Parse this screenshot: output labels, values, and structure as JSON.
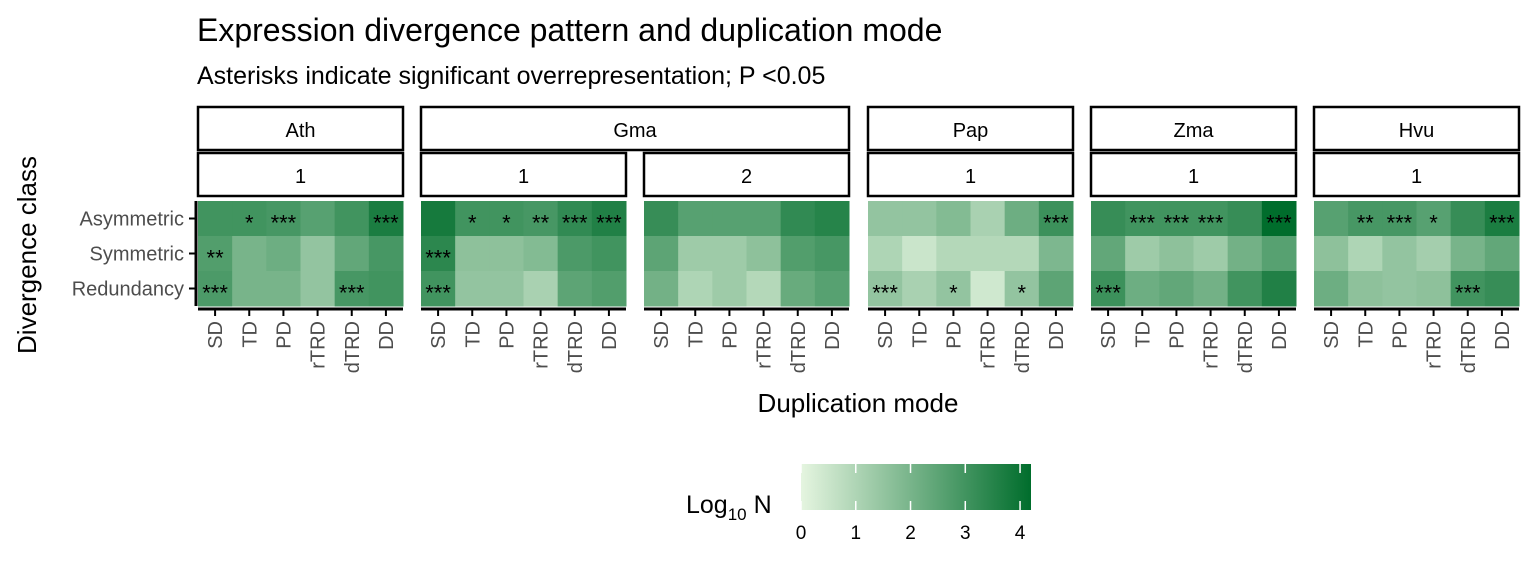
{
  "chart_data": {
    "type": "heatmap",
    "title": "Expression divergence pattern and duplication mode",
    "subtitle": "Asterisks indicate significant overrepresentation; P <0.05",
    "xlabel": "Duplication mode",
    "ylabel": "Divergence class",
    "x_categories": [
      "SD",
      "TD",
      "PD",
      "rTRD",
      "dTRD",
      "DD"
    ],
    "y_categories": [
      "Asymmetric",
      "Symmetric",
      "Redundancy"
    ],
    "legend": {
      "title": "Log",
      "title_sub": "10",
      "title_suffix": " N",
      "position": "bottom",
      "range": [
        0,
        4.2
      ],
      "ticks": [
        0,
        1,
        2,
        3,
        4
      ],
      "color_low": "#e5f5e0",
      "color_high": "#006d2c"
    },
    "panels": [
      {
        "species": "Ath",
        "group": "1",
        "values": [
          [
            3.0,
            3.0,
            2.9,
            2.6,
            3.0,
            3.7
          ],
          [
            2.7,
            2.0,
            2.2,
            1.5,
            2.4,
            2.9
          ],
          [
            2.8,
            2.0,
            2.0,
            1.5,
            2.9,
            3.0
          ]
        ],
        "stars": [
          [
            "",
            "*",
            "***",
            "",
            "",
            "***"
          ],
          [
            "**",
            "",
            "",
            "",
            "",
            ""
          ],
          [
            "***",
            "",
            "",
            "",
            "***",
            ""
          ]
        ]
      },
      {
        "species": "Gma",
        "group": "1",
        "values": [
          [
            3.8,
            3.0,
            3.0,
            2.9,
            3.3,
            3.6
          ],
          [
            3.4,
            1.6,
            1.6,
            1.8,
            2.8,
            3.0
          ],
          [
            3.0,
            1.5,
            1.5,
            1.1,
            2.5,
            2.7
          ]
        ],
        "stars": [
          [
            "",
            "*",
            "*",
            "**",
            "***",
            "***"
          ],
          [
            "***",
            "",
            "",
            "",
            "",
            ""
          ],
          [
            "***",
            "",
            "",
            "",
            "",
            ""
          ]
        ]
      },
      {
        "species": "Gma",
        "group": "2",
        "values": [
          [
            3.2,
            2.6,
            2.6,
            2.6,
            3.3,
            3.5
          ],
          [
            2.5,
            1.3,
            1.3,
            1.6,
            2.7,
            2.9
          ],
          [
            2.1,
            1.0,
            1.3,
            0.9,
            2.3,
            2.6
          ]
        ],
        "stars": [
          [
            "",
            "",
            "",
            "",
            "",
            ""
          ],
          [
            "",
            "",
            "",
            "",
            "",
            ""
          ],
          [
            "",
            "",
            "",
            "",
            "",
            ""
          ]
        ]
      },
      {
        "species": "Pap",
        "group": "1",
        "values": [
          [
            1.5,
            1.5,
            1.8,
            1.1,
            2.2,
            3.1
          ],
          [
            1.0,
            0.5,
            0.9,
            0.9,
            0.9,
            1.9
          ],
          [
            1.5,
            1.1,
            1.5,
            0.4,
            1.5,
            2.5
          ]
        ],
        "stars": [
          [
            "",
            "",
            "",
            "",
            "",
            "***"
          ],
          [
            "",
            "",
            "",
            "",
            "",
            ""
          ],
          [
            "***",
            "",
            "*",
            "",
            "*",
            ""
          ]
        ]
      },
      {
        "species": "Zma",
        "group": "1",
        "values": [
          [
            3.2,
            3.0,
            3.0,
            3.0,
            3.2,
            4.2
          ],
          [
            2.4,
            1.3,
            1.6,
            1.3,
            2.1,
            2.6
          ],
          [
            3.1,
            2.2,
            2.4,
            2.1,
            3.0,
            3.6
          ]
        ],
        "stars": [
          [
            "",
            "***",
            "***",
            "***",
            "",
            "***"
          ],
          [
            "",
            "",
            "",
            "",
            "",
            ""
          ],
          [
            "***",
            "",
            "",
            "",
            "",
            ""
          ]
        ]
      },
      {
        "species": "Hvu",
        "group": "1",
        "values": [
          [
            2.6,
            2.9,
            2.9,
            2.6,
            3.2,
            3.7
          ],
          [
            1.6,
            1.0,
            1.5,
            1.2,
            2.0,
            2.4
          ],
          [
            2.2,
            1.6,
            1.5,
            1.6,
            3.0,
            3.2
          ]
        ],
        "stars": [
          [
            "",
            "**",
            "***",
            "*",
            "",
            "***"
          ],
          [
            "",
            "",
            "",
            "",
            "",
            ""
          ],
          [
            "",
            "",
            "",
            "",
            "***",
            ""
          ]
        ]
      }
    ]
  }
}
